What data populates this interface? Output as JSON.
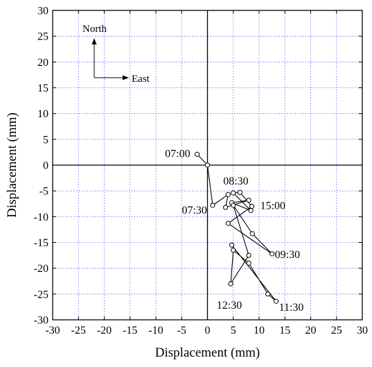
{
  "chart_data": {
    "type": "line",
    "title": "",
    "xlabel": "Displacement (mm)",
    "ylabel": "Displacement (mm)",
    "xlim": [
      -30,
      30
    ],
    "ylim": [
      -30,
      30
    ],
    "x_ticks": [
      -30,
      -25,
      -20,
      -15,
      -10,
      -5,
      0,
      5,
      10,
      15,
      20,
      25,
      30
    ],
    "y_ticks": [
      -30,
      -25,
      -20,
      -15,
      -10,
      -5,
      0,
      5,
      10,
      15,
      20,
      25,
      30
    ],
    "grid": true,
    "grid_style": "dotted",
    "reference_lines": [
      0,
      0
    ],
    "compass": {
      "north": "North",
      "east": "East"
    },
    "series": [
      {
        "marker": "open-circle",
        "color": "#000000",
        "points": [
          {
            "x": -2.0,
            "y": 2.1
          },
          {
            "x": 0.0,
            "y": 0.0
          },
          {
            "x": 1.0,
            "y": -7.8
          },
          {
            "x": 4.0,
            "y": -5.7
          },
          {
            "x": 3.5,
            "y": -8.2
          },
          {
            "x": 8.0,
            "y": -6.8
          },
          {
            "x": 4.7,
            "y": -7.3
          },
          {
            "x": 8.4,
            "y": -8.8
          },
          {
            "x": 5.0,
            "y": -5.4
          },
          {
            "x": 6.3,
            "y": -5.3
          },
          {
            "x": 8.6,
            "y": -8.0
          },
          {
            "x": 4.0,
            "y": -11.3
          },
          {
            "x": 12.5,
            "y": -17.2
          },
          {
            "x": 8.7,
            "y": -13.3
          },
          {
            "x": 5.0,
            "y": -7.8
          },
          {
            "x": 8.0,
            "y": -17.5
          },
          {
            "x": 4.5,
            "y": -23.0
          },
          {
            "x": 5.0,
            "y": -16.5
          },
          {
            "x": 8.0,
            "y": -19.0
          },
          {
            "x": 11.7,
            "y": -25.0
          },
          {
            "x": 13.3,
            "y": -26.4
          },
          {
            "x": 4.7,
            "y": -15.5
          }
        ]
      }
    ],
    "annotations": [
      {
        "text": "07:00",
        "x": -2.0,
        "y": 2.1
      },
      {
        "text": "07:30",
        "x": 1.0,
        "y": -7.8
      },
      {
        "text": "08:30",
        "x": 5.5,
        "y": -5.4
      },
      {
        "text": "15:00",
        "x": 8.6,
        "y": -8.0
      },
      {
        "text": "09:30",
        "x": 12.5,
        "y": -17.2
      },
      {
        "text": "12:30",
        "x": 4.5,
        "y": -23.0
      },
      {
        "text": "11:30",
        "x": 13.3,
        "y": -26.4
      }
    ]
  }
}
